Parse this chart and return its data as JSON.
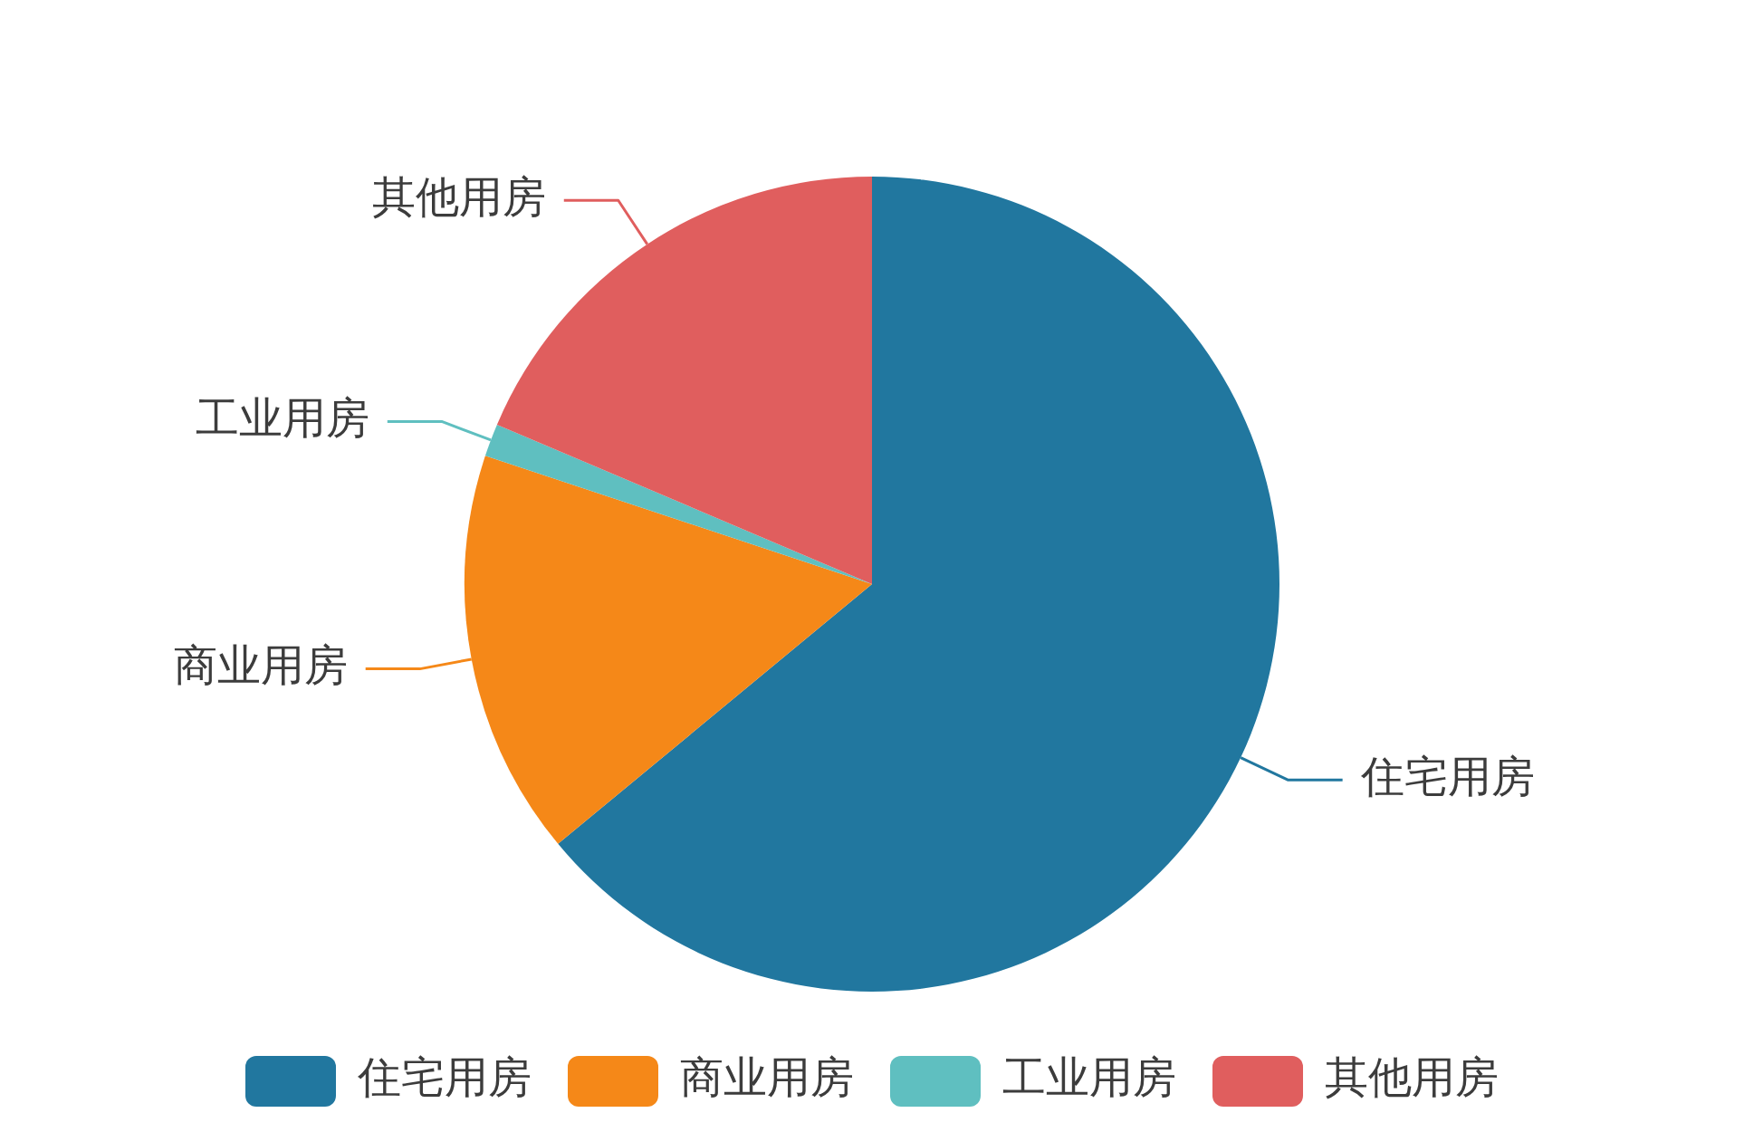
{
  "chart_data": {
    "type": "pie",
    "categories": [
      "住宅用房",
      "商业用房",
      "工业用房",
      "其他用房"
    ],
    "values": [
      64.0,
      16.1,
      1.3,
      18.6
    ],
    "colors": [
      "#21779f",
      "#f58818",
      "#5fbfc0",
      "#e05e5e"
    ],
    "legend": "bottom"
  }
}
